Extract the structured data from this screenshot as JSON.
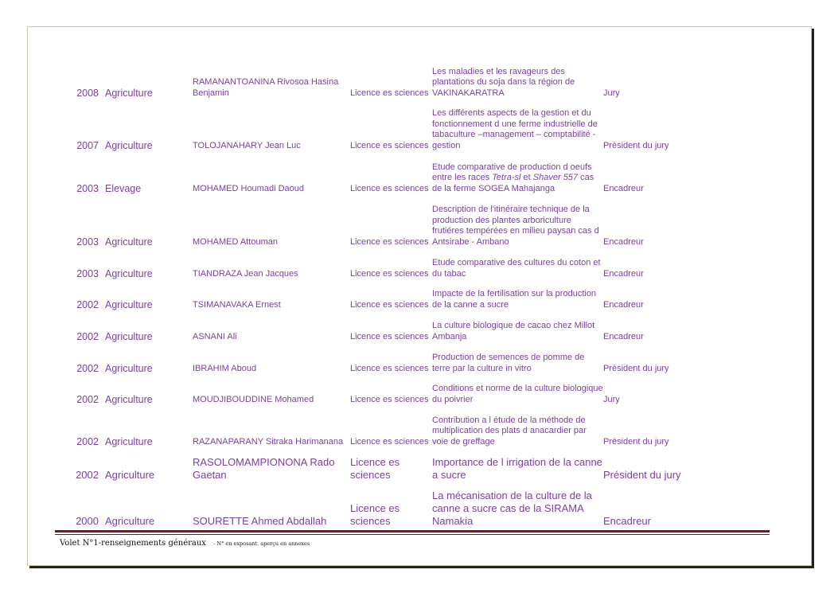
{
  "rows": [
    {
      "year": "2008",
      "domain": "Agriculture",
      "name": "RAMANANTOANINA Rivosoa Hasina Benjamin",
      "degree": "Licence es sciences",
      "title": [
        {
          "text": "Les maladies et les ravageurs des plantations du soja dans la région de VAKINAKARATRA"
        }
      ],
      "role": "Jury"
    },
    {
      "year": "2007",
      "domain": "Agriculture",
      "name": "TOLOJANAHARY Jean Luc",
      "degree": "Licence es sciences",
      "title": [
        {
          "text": "Les différents aspects de la gestion et du fonctionnement d une ferme industrielle de tabaculture –management – comptabilité - gestion"
        }
      ],
      "role": "Président du jury"
    },
    {
      "year": "2003",
      "domain": "Elevage",
      "name": "MOHAMED Houmadi Daoud",
      "degree": "Licence es sciences",
      "title": [
        {
          "text": "Etude comparative de production d oeufs entre les races "
        },
        {
          "text": "Tetra-sl",
          "italic": true
        },
        {
          "text": " et "
        },
        {
          "text": "Shaver 557",
          "italic": true
        },
        {
          "text": " cas de la ferme SOGEA Mahajanga"
        }
      ],
      "role": "Encadreur"
    },
    {
      "year": "2003",
      "domain": "Agriculture",
      "name": "MOHAMED Attouman",
      "degree": "Licence es sciences",
      "title": [
        {
          "text": "Description de l'itinéraire technique de la production des plantes arboriculture frutiéres tempérées en milieu paysan cas d Antsirabe - Ambano"
        }
      ],
      "role": "Encadreur"
    },
    {
      "year": "2003",
      "domain": "Agriculture",
      "name": "TIANDRAZA Jean Jacques",
      "degree": "Licence es sciences",
      "title": [
        {
          "text": "Etude comparative des cultures du coton et du tabac"
        }
      ],
      "role": "Encadreur"
    },
    {
      "year": "2002",
      "domain": "Agriculture",
      "name": "TSIMANAVAKA Ernest",
      "degree": "Licence es sciences",
      "title": [
        {
          "text": "Impacte de la fertilisation sur la production de la canne a sucre"
        }
      ],
      "role": "Encadreur"
    },
    {
      "year": "2002",
      "domain": "Agriculture",
      "name": "ASNANI Ali",
      "degree": "Licence es sciences",
      "title": [
        {
          "text": "La culture biologique de cacao chez Millot Ambanja"
        }
      ],
      "role": "Encadreur"
    },
    {
      "year": "2002",
      "domain": "Agriculture",
      "name": "IBRAHIM Aboud",
      "degree": "Licence es sciences",
      "title": [
        {
          "text": "Production de semences de pomme de terre par la culture in vitro"
        }
      ],
      "role": "Président du jury"
    },
    {
      "year": "2002",
      "domain": "Agriculture",
      "name": "MOUDJIBOUDDINE Mohamed",
      "degree": "Licence es sciences",
      "title": [
        {
          "text": "Conditions et norme de la culture biologique du poivrier"
        }
      ],
      "role": "Jury"
    },
    {
      "year": "2002",
      "domain": "Agriculture",
      "name": "RAZANAPARANY Sitraka Harimanana",
      "degree": "Licence es sciences",
      "title": [
        {
          "text": "Contribution a l étude de la méthode de multiplication des plats d anacardier par voie de greffage"
        }
      ],
      "role": "Président du jury"
    },
    {
      "year": "2002",
      "domain": "Agriculture",
      "name": "RASOLOMAMPIONONA Rado Gaetan",
      "degree": "Licence es sciences",
      "title": [
        {
          "text": "Importance de l irrigation de la canne a sucre"
        }
      ],
      "role": "Président du jury",
      "big": true
    },
    {
      "year": "2000",
      "domain": "Agriculture",
      "name": "SOURETTE Ahmed Abdallah",
      "degree": "Licence es sciences",
      "title": [
        {
          "text": "La mécanisation de la culture de la canne a sucre cas de la SIRAMA Namakia"
        }
      ],
      "role": "Encadreur",
      "big": true
    }
  ],
  "footer": {
    "main": "Volet N°1-renseignements généraux",
    "note": "- N° en exposant. aperçu en annexes"
  },
  "colors": {
    "text": "#7b3fa3",
    "rule": "#5b2228"
  }
}
